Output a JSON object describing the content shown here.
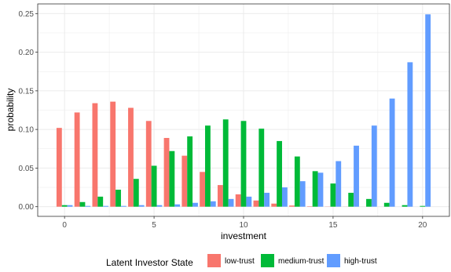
{
  "chart_data": {
    "type": "bar",
    "xlabel": "investment",
    "ylabel": "probability",
    "x": [
      0,
      1,
      2,
      3,
      4,
      5,
      6,
      7,
      8,
      9,
      10,
      11,
      12,
      13,
      14,
      15,
      16,
      17,
      18,
      19,
      20
    ],
    "xlim": [
      -1.5,
      21.5
    ],
    "ylim": [
      -0.0125,
      0.2625
    ],
    "x_ticks": [
      0,
      5,
      10,
      15,
      20
    ],
    "y_ticks": [
      0.0,
      0.05,
      0.1,
      0.15,
      0.2,
      0.25
    ],
    "y_tick_labels": [
      "0.00",
      "0.05",
      "0.10",
      "0.15",
      "0.20",
      "0.25"
    ],
    "grid": true,
    "legend": {
      "title": "Latent Investor State",
      "position": "bottom"
    },
    "series": [
      {
        "name": "low-trust",
        "color": "#F8766D",
        "values": [
          0.102,
          0.122,
          0.134,
          0.136,
          0.128,
          0.111,
          0.089,
          0.066,
          0.045,
          0.028,
          0.016,
          0.008,
          0.004,
          0.0015,
          0.0005,
          0.0002,
          0.0001,
          0,
          0,
          0,
          0
        ]
      },
      {
        "name": "medium-trust",
        "color": "#00BA38",
        "values": [
          0.002,
          0.006,
          0.013,
          0.022,
          0.036,
          0.053,
          0.072,
          0.091,
          0.105,
          0.113,
          0.111,
          0.101,
          0.085,
          0.065,
          0.046,
          0.03,
          0.018,
          0.01,
          0.005,
          0.002,
          0.001
        ]
      },
      {
        "name": "high-trust",
        "color": "#619CFF",
        "values": [
          0.002,
          0.001,
          0.001,
          0.001,
          0.002,
          0.002,
          0.003,
          0.005,
          0.007,
          0.01,
          0.013,
          0.018,
          0.025,
          0.033,
          0.044,
          0.059,
          0.079,
          0.105,
          0.14,
          0.187,
          0.249
        ]
      }
    ]
  }
}
